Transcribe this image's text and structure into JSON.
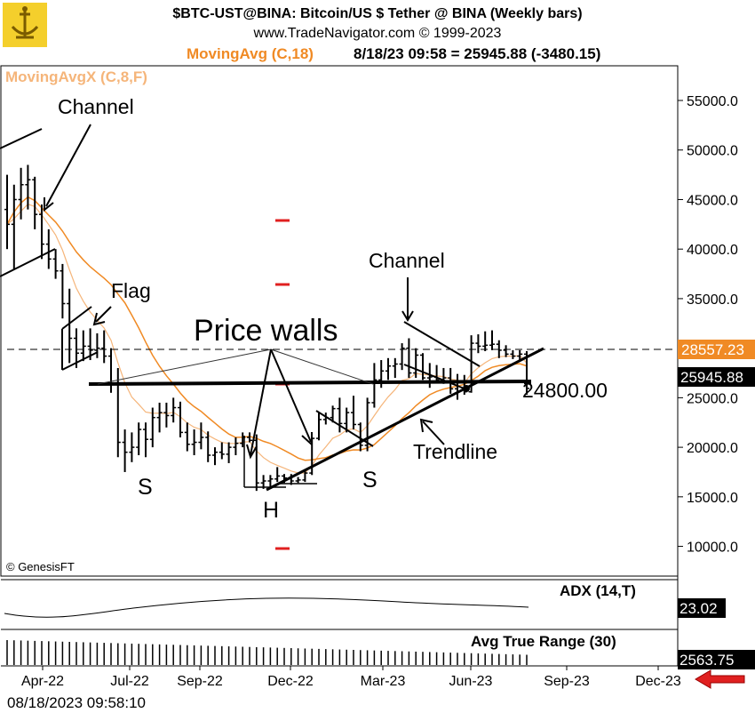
{
  "header": {
    "title": "$BTC-UST@BINA:  Bitcoin/US $ Tether @ BINA  (Weekly bars)",
    "copyright": "www.TradeNavigator.com © 1999-2023",
    "ma_label": "MovingAvg (C,18)",
    "readout": "8/18/23 09:58 = 25945.88 (-3480.15)",
    "ma2_label": "MovingAvgX (C,8,F)"
  },
  "footer": {
    "timestamp": "08/18/2023 09:58:10",
    "credit": "© GenesisFT"
  },
  "panels": {
    "adx": {
      "label": "ADX (14,T)",
      "value": "23.02"
    },
    "atr": {
      "label": "Avg True Range (30)",
      "value": "2563.75"
    }
  },
  "price_tags": {
    "ma": "28557.23",
    "last": "25945.88"
  },
  "annotations": {
    "channel1": "Channel",
    "flag": "Flag",
    "price_walls": "Price walls",
    "channel2": "Channel",
    "trendline": "Trendline",
    "level": "24800.00",
    "s_left": "S",
    "h": "H",
    "s_right": "S"
  },
  "colors": {
    "ma": "#f08a24",
    "ma2": "#f5b57a",
    "bars": "#000000",
    "arrow": "#e02020",
    "tick_red": "#e02020"
  },
  "chart_data": {
    "type": "ohlc",
    "title": "$BTC-UST@BINA:  Bitcoin/US $ Tether @ BINA  (Weekly bars)",
    "ylim": [
      7000,
      58500
    ],
    "yticks": [
      "55000.0",
      "50000.0",
      "45000.0",
      "40000.0",
      "35000.0",
      "30000.0",
      "25000.0",
      "20000.0",
      "15000.0",
      "10000.0"
    ],
    "xticks": [
      "Apr-22",
      "Jul-22",
      "Sep-22",
      "Dec-22",
      "Mar-23",
      "Jun-23",
      "Sep-23",
      "Dec-23"
    ],
    "weeks": [
      {
        "o": 44000,
        "h": 47500,
        "l": 40000,
        "c": 42500
      },
      {
        "o": 42500,
        "h": 46500,
        "l": 38000,
        "c": 45000
      },
      {
        "o": 45000,
        "h": 48200,
        "l": 43000,
        "c": 46500
      },
      {
        "o": 46500,
        "h": 48500,
        "l": 44000,
        "c": 47000
      },
      {
        "o": 47000,
        "h": 47300,
        "l": 42000,
        "c": 43500
      },
      {
        "o": 43500,
        "h": 44500,
        "l": 39000,
        "c": 40500
      },
      {
        "o": 40500,
        "h": 42000,
        "l": 38000,
        "c": 39000
      },
      {
        "o": 39000,
        "h": 40000,
        "l": 37000,
        "c": 37800
      },
      {
        "o": 37800,
        "h": 38500,
        "l": 33000,
        "c": 34500
      },
      {
        "o": 34500,
        "h": 36000,
        "l": 28500,
        "c": 31000
      },
      {
        "o": 31000,
        "h": 32000,
        "l": 28000,
        "c": 29500
      },
      {
        "o": 29500,
        "h": 31800,
        "l": 28700,
        "c": 30200
      },
      {
        "o": 30200,
        "h": 32000,
        "l": 28800,
        "c": 29800
      },
      {
        "o": 29800,
        "h": 31500,
        "l": 29000,
        "c": 30000
      },
      {
        "o": 30000,
        "h": 31800,
        "l": 28500,
        "c": 29200
      },
      {
        "o": 29200,
        "h": 30000,
        "l": 25500,
        "c": 26500
      },
      {
        "o": 26500,
        "h": 28000,
        "l": 19000,
        "c": 20500
      },
      {
        "o": 20500,
        "h": 21800,
        "l": 17500,
        "c": 19500
      },
      {
        "o": 19500,
        "h": 21500,
        "l": 18500,
        "c": 20000
      },
      {
        "o": 20000,
        "h": 22500,
        "l": 19200,
        "c": 21800
      },
      {
        "o": 21800,
        "h": 22500,
        "l": 19000,
        "c": 20800
      },
      {
        "o": 20800,
        "h": 24000,
        "l": 20000,
        "c": 23000
      },
      {
        "o": 23000,
        "h": 24500,
        "l": 21500,
        "c": 23500
      },
      {
        "o": 23500,
        "h": 24500,
        "l": 22000,
        "c": 23200
      },
      {
        "o": 23200,
        "h": 25000,
        "l": 22500,
        "c": 24000
      },
      {
        "o": 24000,
        "h": 24600,
        "l": 21000,
        "c": 21500
      },
      {
        "o": 21500,
        "h": 22500,
        "l": 19600,
        "c": 20300
      },
      {
        "o": 20300,
        "h": 21800,
        "l": 19200,
        "c": 20500
      },
      {
        "o": 20500,
        "h": 22500,
        "l": 19800,
        "c": 21000
      },
      {
        "o": 21000,
        "h": 21600,
        "l": 18500,
        "c": 19200
      },
      {
        "o": 19200,
        "h": 20000,
        "l": 18200,
        "c": 19500
      },
      {
        "o": 19500,
        "h": 20500,
        "l": 18800,
        "c": 19300
      },
      {
        "o": 19300,
        "h": 20500,
        "l": 18400,
        "c": 20000
      },
      {
        "o": 20000,
        "h": 21000,
        "l": 19200,
        "c": 20400
      },
      {
        "o": 20400,
        "h": 21500,
        "l": 20000,
        "c": 21000
      },
      {
        "o": 21000,
        "h": 21500,
        "l": 20500,
        "c": 20700
      },
      {
        "o": 20700,
        "h": 21300,
        "l": 15600,
        "c": 16400
      },
      {
        "o": 16400,
        "h": 17200,
        "l": 15800,
        "c": 16600
      },
      {
        "o": 16600,
        "h": 17200,
        "l": 16000,
        "c": 16800
      },
      {
        "o": 16800,
        "h": 18000,
        "l": 16500,
        "c": 17100
      },
      {
        "o": 17100,
        "h": 17300,
        "l": 16400,
        "c": 16900
      },
      {
        "o": 16900,
        "h": 17300,
        "l": 16200,
        "c": 16600
      },
      {
        "o": 16600,
        "h": 17000,
        "l": 16400,
        "c": 16700
      },
      {
        "o": 16700,
        "h": 17600,
        "l": 16500,
        "c": 17400
      },
      {
        "o": 17400,
        "h": 21000,
        "l": 17200,
        "c": 20900
      },
      {
        "o": 20900,
        "h": 23500,
        "l": 20700,
        "c": 22800
      },
      {
        "o": 22800,
        "h": 23500,
        "l": 22300,
        "c": 23000
      },
      {
        "o": 23000,
        "h": 24200,
        "l": 22500,
        "c": 23900
      },
      {
        "o": 23900,
        "h": 25000,
        "l": 21500,
        "c": 22400
      },
      {
        "o": 22400,
        "h": 24000,
        "l": 21500,
        "c": 23500
      },
      {
        "o": 23500,
        "h": 25200,
        "l": 21800,
        "c": 22300
      },
      {
        "o": 22300,
        "h": 22500,
        "l": 19600,
        "c": 20200
      },
      {
        "o": 20200,
        "h": 25000,
        "l": 19600,
        "c": 24500
      },
      {
        "o": 24500,
        "h": 28500,
        "l": 24000,
        "c": 26800
      },
      {
        "o": 26800,
        "h": 28800,
        "l": 26000,
        "c": 27700
      },
      {
        "o": 27700,
        "h": 29000,
        "l": 26800,
        "c": 28200
      },
      {
        "o": 28200,
        "h": 29000,
        "l": 27000,
        "c": 28400
      },
      {
        "o": 28400,
        "h": 30500,
        "l": 27800,
        "c": 30000
      },
      {
        "o": 30000,
        "h": 31000,
        "l": 27000,
        "c": 27500
      },
      {
        "o": 27500,
        "h": 30000,
        "l": 27000,
        "c": 29300
      },
      {
        "o": 29300,
        "h": 29500,
        "l": 26800,
        "c": 27000
      },
      {
        "o": 27000,
        "h": 28500,
        "l": 26000,
        "c": 27100
      },
      {
        "o": 27100,
        "h": 28300,
        "l": 26500,
        "c": 26800
      },
      {
        "o": 26800,
        "h": 28000,
        "l": 26400,
        "c": 27000
      },
      {
        "o": 27000,
        "h": 28000,
        "l": 25400,
        "c": 25900
      },
      {
        "o": 25900,
        "h": 27400,
        "l": 24800,
        "c": 26500
      },
      {
        "o": 26500,
        "h": 27300,
        "l": 25300,
        "c": 25600
      },
      {
        "o": 25600,
        "h": 31300,
        "l": 25500,
        "c": 30500
      },
      {
        "o": 30500,
        "h": 31400,
        "l": 29500,
        "c": 30200
      },
      {
        "o": 30200,
        "h": 31700,
        "l": 29700,
        "c": 30300
      },
      {
        "o": 30300,
        "h": 31800,
        "l": 29800,
        "c": 30400
      },
      {
        "o": 30400,
        "h": 30800,
        "l": 29000,
        "c": 29800
      },
      {
        "o": 29800,
        "h": 30300,
        "l": 29100,
        "c": 29400
      },
      {
        "o": 29400,
        "h": 29800,
        "l": 28900,
        "c": 29200
      },
      {
        "o": 29200,
        "h": 29800,
        "l": 28700,
        "c": 29400
      },
      {
        "o": 29400,
        "h": 29700,
        "l": 25300,
        "c": 25946
      }
    ]
  }
}
